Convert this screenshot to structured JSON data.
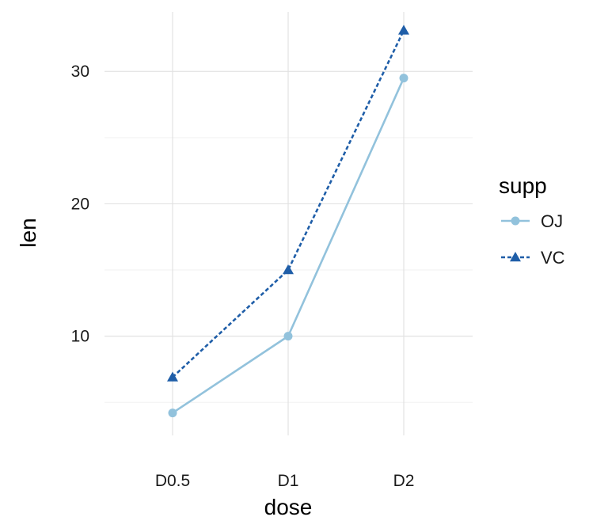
{
  "chart_data": {
    "type": "line",
    "categories": [
      "D0.5",
      "D1",
      "D2"
    ],
    "xlabel": "dose",
    "ylabel": "len",
    "yticks": [
      10,
      20,
      30
    ],
    "ylim": [
      2.5,
      34.5
    ],
    "grid": true,
    "legend": {
      "title": "supp",
      "placement": "right"
    },
    "series": [
      {
        "name": "OJ",
        "values": [
          4.2,
          10.0,
          29.5
        ],
        "color": "#92c2dc",
        "marker": "circle",
        "line": "solid"
      },
      {
        "name": "VC",
        "values": [
          6.9,
          15.0,
          33.1
        ],
        "color": "#1f5ea8",
        "marker": "triangle",
        "line": "dashed"
      }
    ]
  }
}
